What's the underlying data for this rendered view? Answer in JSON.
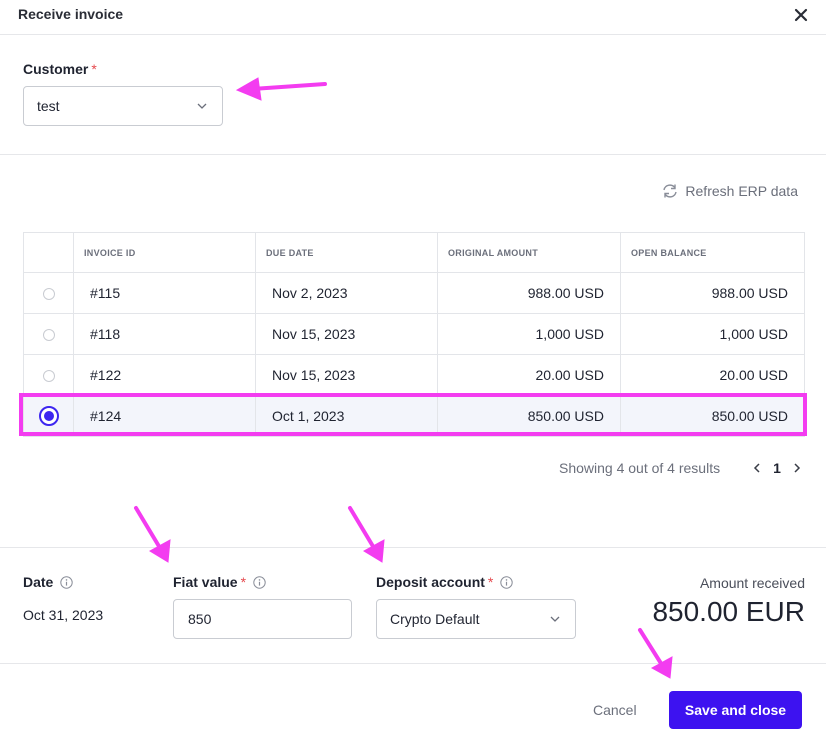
{
  "modal": {
    "title": "Receive invoice",
    "close_icon": "close-icon"
  },
  "customer": {
    "label": "Customer",
    "required_mark": "*",
    "value": "test"
  },
  "refresh": {
    "label": "Refresh ERP data",
    "icon": "refresh-icon"
  },
  "table": {
    "headers": [
      "INVOICE ID",
      "DUE DATE",
      "ORIGINAL AMOUNT",
      "OPEN BALANCE"
    ],
    "rows": [
      {
        "id": "#115",
        "due": "Nov 2, 2023",
        "amount": "988.00 USD",
        "balance": "988.00 USD",
        "selected": false
      },
      {
        "id": "#118",
        "due": "Nov 15, 2023",
        "amount": "1,000 USD",
        "balance": "1,000 USD",
        "selected": false
      },
      {
        "id": "#122",
        "due": "Nov 15, 2023",
        "amount": "20.00 USD",
        "balance": "20.00 USD",
        "selected": false
      },
      {
        "id": "#124",
        "due": "Oct 1, 2023",
        "amount": "850.00 USD",
        "balance": "850.00 USD",
        "selected": true
      }
    ]
  },
  "pagination": {
    "summary": "Showing 4 out of 4 results",
    "page": "1"
  },
  "date": {
    "label": "Date",
    "value": "Oct 31, 2023"
  },
  "fiat": {
    "label": "Fiat value",
    "required_mark": "*",
    "value": "850"
  },
  "deposit": {
    "label": "Deposit account",
    "required_mark": "*",
    "value": "Crypto Default"
  },
  "received": {
    "label": "Amount received",
    "value": "850.00 EUR"
  },
  "footer": {
    "cancel_label": "Cancel",
    "save_label": "Save and close"
  },
  "colors": {
    "primary": "#3d12f0",
    "annotation": "#f33cf0",
    "required": "#e5484d"
  }
}
